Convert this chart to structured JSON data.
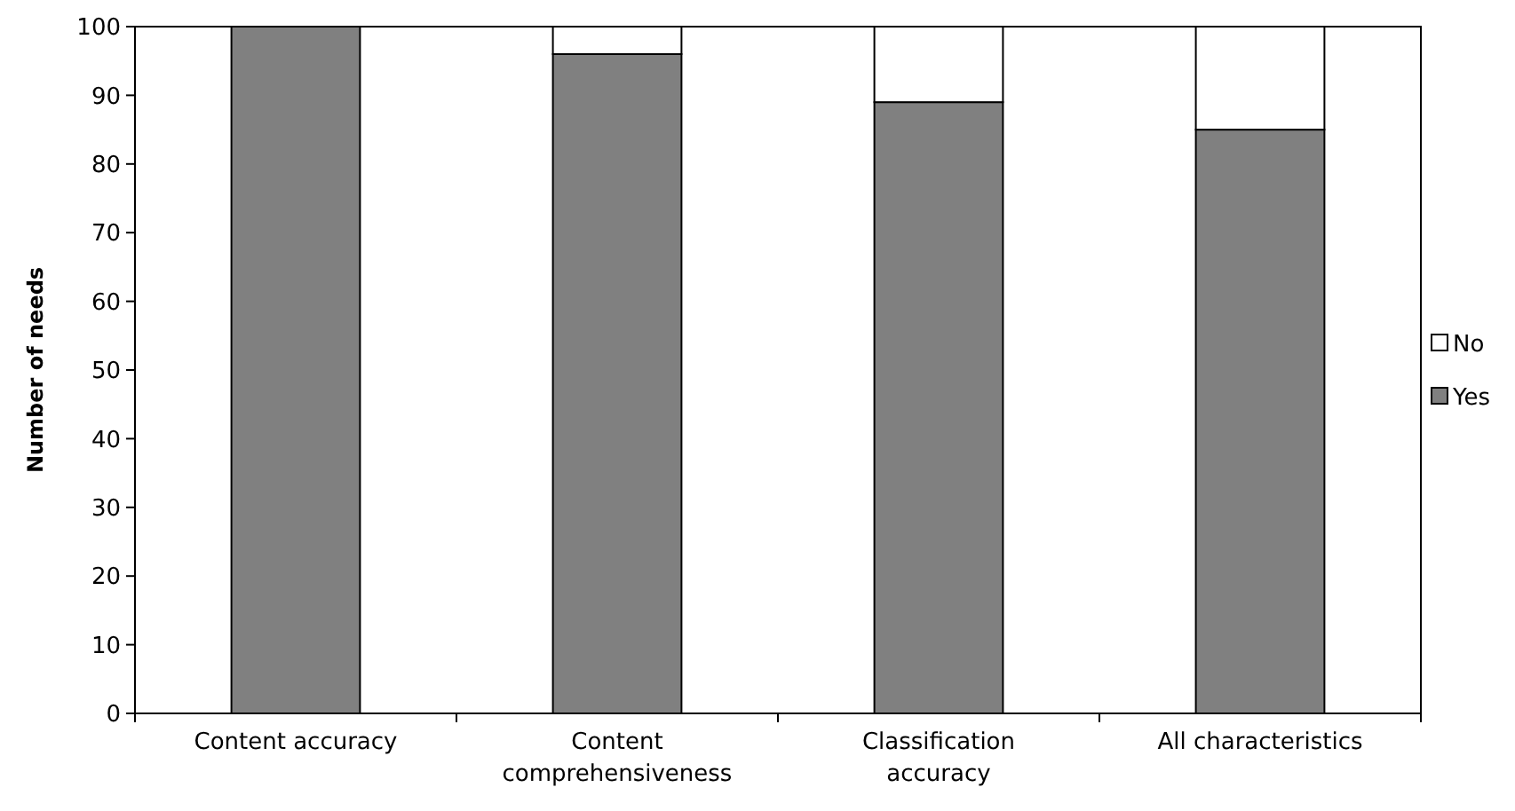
{
  "chart_data": {
    "type": "bar",
    "stacked": true,
    "ylabel": "Number of needs",
    "categories": [
      "Content accuracy",
      "Content comprehensiveness",
      "Classification accuracy",
      "All characteristics"
    ],
    "series": [
      {
        "name": "Yes",
        "color": "#808080",
        "values": [
          100,
          96,
          89,
          85
        ]
      },
      {
        "name": "No",
        "color": "#ffffff",
        "values": [
          0,
          4,
          11,
          15
        ]
      }
    ],
    "ylim": [
      0,
      100
    ],
    "yticks": [
      0,
      10,
      20,
      30,
      40,
      50,
      60,
      70,
      80,
      90,
      100
    ],
    "grid": false,
    "legend": "right"
  }
}
